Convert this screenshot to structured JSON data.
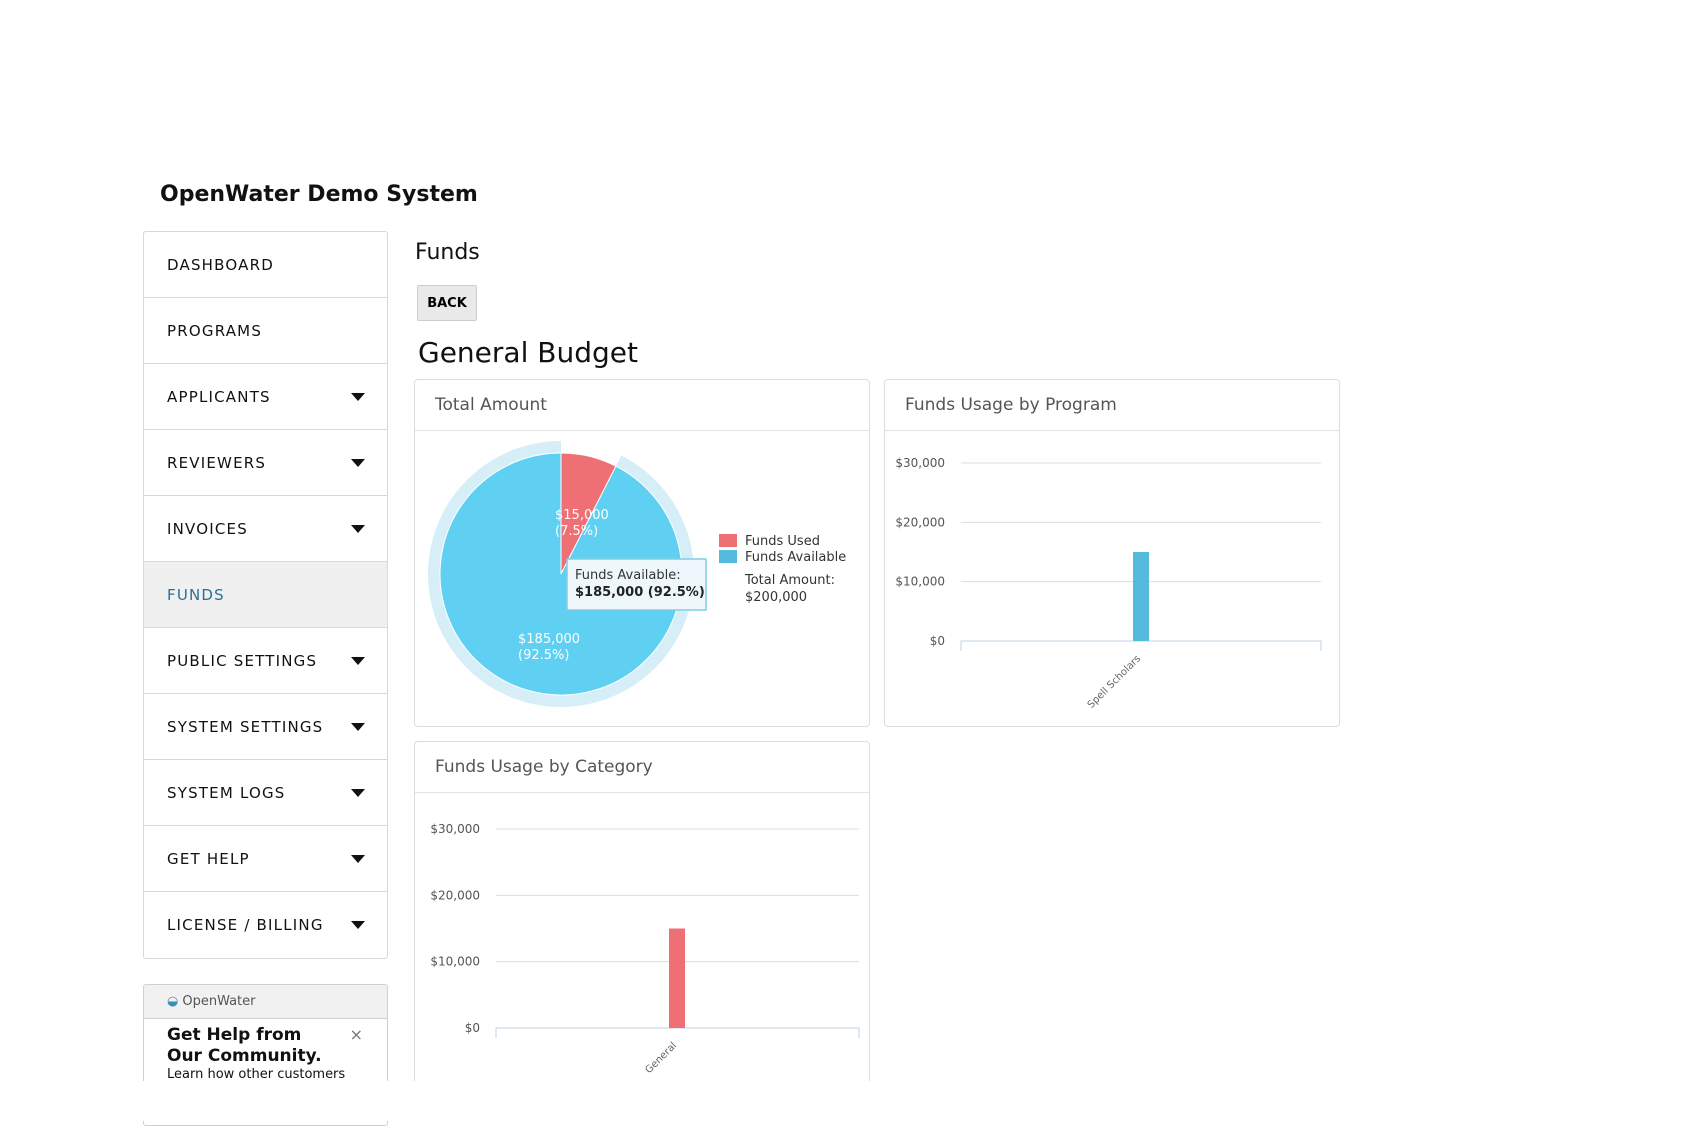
{
  "app": {
    "title": "OpenWater Demo System"
  },
  "sidebar": {
    "items": [
      {
        "label": "DASHBOARD",
        "caret": false
      },
      {
        "label": "PROGRAMS",
        "caret": false
      },
      {
        "label": "APPLICANTS",
        "caret": true
      },
      {
        "label": "REVIEWERS",
        "caret": true
      },
      {
        "label": "INVOICES",
        "caret": true
      },
      {
        "label": "FUNDS",
        "caret": false,
        "active": true
      },
      {
        "label": "PUBLIC SETTINGS",
        "caret": true
      },
      {
        "label": "SYSTEM SETTINGS",
        "caret": true
      },
      {
        "label": "SYSTEM LOGS",
        "caret": true
      },
      {
        "label": "GET HELP",
        "caret": true
      },
      {
        "label": "LICENSE / BILLING",
        "caret": true
      }
    ]
  },
  "help": {
    "brand": "OpenWater",
    "title": "Get Help from Our Community.",
    "text": "Learn how other customers",
    "close": "×"
  },
  "page": {
    "heading": "Funds",
    "back": "BACK",
    "subheading": "General Budget"
  },
  "colors": {
    "used": "#ee6f74",
    "available": "#5fd0f2",
    "bar_program": "#55bbdd",
    "bar_category": "#ee6f74"
  },
  "chart_data": [
    {
      "type": "pie",
      "title": "Total Amount",
      "slices": [
        {
          "name": "Funds Used",
          "value": 15000,
          "label": "$15,000",
          "pct": "(7.5%)"
        },
        {
          "name": "Funds Available",
          "value": 185000,
          "label": "$185,000",
          "pct": "(92.5%)"
        }
      ],
      "legend": [
        "Funds Used",
        "Funds Available"
      ],
      "legend_position": "right",
      "total_label": "Total Amount:",
      "total_value": "$200,000",
      "tooltip": {
        "title": "Funds Available:",
        "value": "$185,000 (92.5%)"
      }
    },
    {
      "type": "bar",
      "title": "Funds Usage by Program",
      "categories": [
        "Spell Scholars"
      ],
      "values": [
        15000
      ],
      "ylim": [
        0,
        30000
      ],
      "yticks": [
        "$0",
        "$10,000",
        "$20,000",
        "$30,000"
      ],
      "grid": true
    },
    {
      "type": "bar",
      "title": "Funds Usage by Category",
      "categories": [
        "General"
      ],
      "values": [
        15000
      ],
      "ylim": [
        0,
        30000
      ],
      "yticks": [
        "$0",
        "$10,000",
        "$20,000",
        "$30,000"
      ],
      "grid": true
    }
  ]
}
